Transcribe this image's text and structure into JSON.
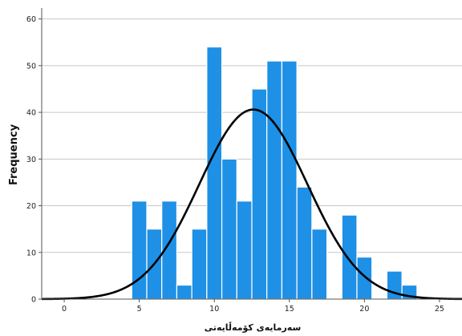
{
  "chart_data": {
    "type": "bar",
    "xlabel": "سەرمایەی کۆمەڵایەتی",
    "ylabel": "Frequency",
    "bins": [
      {
        "start": 4.5,
        "end": 5.5,
        "value": 21
      },
      {
        "start": 5.5,
        "end": 6.5,
        "value": 15
      },
      {
        "start": 6.5,
        "end": 7.5,
        "value": 21
      },
      {
        "start": 7.5,
        "end": 8.5,
        "value": 3
      },
      {
        "start": 8.5,
        "end": 9.5,
        "value": 15
      },
      {
        "start": 9.5,
        "end": 10.5,
        "value": 54
      },
      {
        "start": 10.5,
        "end": 11.5,
        "value": 30
      },
      {
        "start": 11.5,
        "end": 12.5,
        "value": 21
      },
      {
        "start": 12.5,
        "end": 13.5,
        "value": 45
      },
      {
        "start": 13.5,
        "end": 14.5,
        "value": 51
      },
      {
        "start": 14.5,
        "end": 15.5,
        "value": 51
      },
      {
        "start": 15.5,
        "end": 16.5,
        "value": 24
      },
      {
        "start": 16.5,
        "end": 17.5,
        "value": 15
      },
      {
        "start": 18.5,
        "end": 19.5,
        "value": 18
      },
      {
        "start": 19.5,
        "end": 20.5,
        "value": 9
      },
      {
        "start": 21.5,
        "end": 22.5,
        "value": 6
      },
      {
        "start": 22.5,
        "end": 23.5,
        "value": 3
      }
    ],
    "normal_curve": {
      "mean": 12.6,
      "std_dev": 3.6,
      "peak": 40.6
    },
    "xlim": [
      -1.5,
      26.5
    ],
    "ylim": [
      0,
      62
    ],
    "xticks": [
      0,
      5,
      10,
      15,
      20,
      25
    ],
    "yticks": [
      0,
      10,
      20,
      30,
      40,
      50,
      60
    ],
    "grid": "horizontal",
    "bar_color": "#1e90e6",
    "bar_edge_color": "#ffffff",
    "curve_color": "#000000"
  }
}
